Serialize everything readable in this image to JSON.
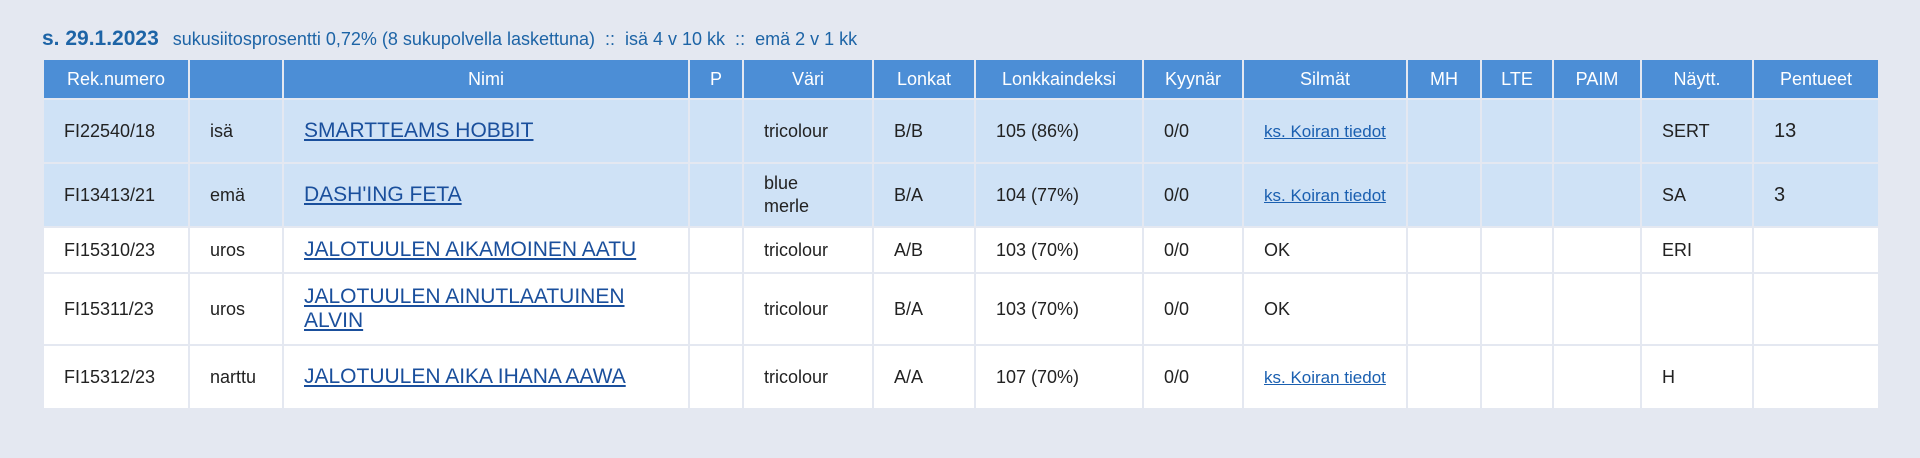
{
  "info": {
    "date": "s. 29.1.2023",
    "details": "sukusiitosprosentti 0,72% (8 sukupolvella laskettuna)  ::  isä 4 v 10 kk  ::  emä 2 v 1 kk"
  },
  "table": {
    "headers": {
      "rek": "Rek.numero",
      "role": "",
      "name": "Nimi",
      "p": "P",
      "color": "Väri",
      "hips": "Lonkat",
      "hip_index": "Lonkkaindeksi",
      "elbows": "Kyynär",
      "eyes": "Silmät",
      "mh": "MH",
      "lte": "LTE",
      "paim": "PAIM",
      "show": "Näytt.",
      "litters": "Pentueet"
    },
    "rows": [
      {
        "rek": "FI22540/18",
        "role": "isä",
        "name": "SMARTTEAMS HOBBIT",
        "p": "",
        "color": "tricolour",
        "hips": "B/B",
        "hip_index": "105 (86%)",
        "elbows": "0/0",
        "eyes": "ks. Koiran tiedot",
        "mh": "",
        "lte": "",
        "paim": "",
        "show": "SERT",
        "litters": "13"
      },
      {
        "rek": "FI13413/21",
        "role": "emä",
        "name": "DASH'ING FETA",
        "p": "",
        "color": "blue merle",
        "hips": "B/A",
        "hip_index": "104 (77%)",
        "elbows": "0/0",
        "eyes": "ks. Koiran tiedot",
        "mh": "",
        "lte": "",
        "paim": "",
        "show": "SA",
        "litters": "3"
      },
      {
        "rek": "FI15310/23",
        "role": "uros",
        "name": "JALOTUULEN AIKAMOINEN AATU",
        "p": "",
        "color": "tricolour",
        "hips": "A/B",
        "hip_index": "103 (70%)",
        "elbows": "0/0",
        "eyes": "OK",
        "mh": "",
        "lte": "",
        "paim": "",
        "show": "ERI",
        "litters": ""
      },
      {
        "rek": "FI15311/23",
        "role": "uros",
        "name": "JALOTUULEN AINUTLAATUINEN ALVIN",
        "p": "",
        "color": "tricolour",
        "hips": "B/A",
        "hip_index": "103 (70%)",
        "elbows": "0/0",
        "eyes": "OK",
        "mh": "",
        "lte": "",
        "paim": "",
        "show": "",
        "litters": ""
      },
      {
        "rek": "FI15312/23",
        "role": "narttu",
        "name": "JALOTUULEN AIKA IHANA AAWA",
        "p": "",
        "color": "tricolour",
        "hips": "A/A",
        "hip_index": "107 (70%)",
        "elbows": "0/0",
        "eyes": "ks. Koiran tiedot",
        "mh": "",
        "lte": "",
        "paim": "",
        "show": "H",
        "litters": ""
      }
    ]
  }
}
